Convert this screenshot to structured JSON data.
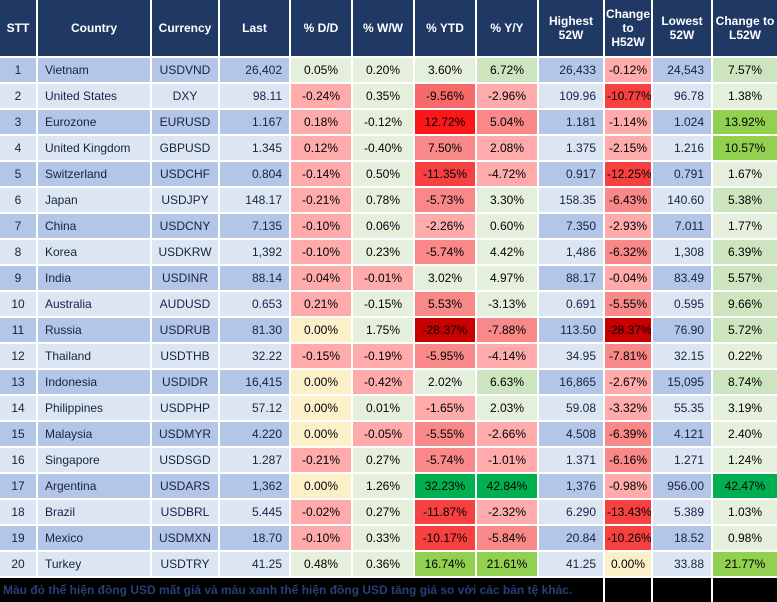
{
  "chart_data": {
    "type": "table",
    "columns": [
      "STT",
      "Country",
      "Currency",
      "Last",
      "% D/D",
      "% W/W",
      "% YTD",
      "% Y/Y",
      "Highest 52W",
      "Change to H52W",
      "Lowest 52W",
      "Change to L52W"
    ],
    "rows": [
      {
        "stt": "1",
        "country": "Vietnam",
        "currency": "USDVND",
        "last": "26,402",
        "dd": {
          "v": "0.05%",
          "c": "g1"
        },
        "ww": {
          "v": "0.20%",
          "c": "g1"
        },
        "ytd": {
          "v": "3.60%",
          "c": "g1"
        },
        "yy": {
          "v": "6.72%",
          "c": "g2"
        },
        "h52": "26,433",
        "chg_h": {
          "v": "-0.12%",
          "c": "r1"
        },
        "l52": "24,543",
        "chg_l": {
          "v": "7.57%",
          "c": "g2"
        }
      },
      {
        "stt": "2",
        "country": "United States",
        "currency": "DXY",
        "last": "98.11",
        "dd": {
          "v": "-0.24%",
          "c": "r1"
        },
        "ww": {
          "v": "0.35%",
          "c": "g1"
        },
        "ytd": {
          "v": "-9.56%",
          "c": "r3"
        },
        "yy": {
          "v": "-2.96%",
          "c": "r1"
        },
        "h52": "109.96",
        "chg_h": {
          "v": "-10.77%",
          "c": "r4"
        },
        "l52": "96.78",
        "chg_l": {
          "v": "1.38%",
          "c": "g1"
        }
      },
      {
        "stt": "3",
        "country": "Eurozone",
        "currency": "EURUSD",
        "last": "1.167",
        "dd": {
          "v": "0.18%",
          "c": "r1"
        },
        "ww": {
          "v": "-0.12%",
          "c": "g1"
        },
        "ytd": {
          "v": "12.72%",
          "c": "r5"
        },
        "yy": {
          "v": "5.04%",
          "c": "r2"
        },
        "h52": "1.181",
        "chg_h": {
          "v": "-1.14%",
          "c": "r1"
        },
        "l52": "1.024",
        "chg_l": {
          "v": "13.92%",
          "c": "g3"
        }
      },
      {
        "stt": "4",
        "country": "United Kingdom",
        "currency": "GBPUSD",
        "last": "1.345",
        "dd": {
          "v": "0.12%",
          "c": "r1"
        },
        "ww": {
          "v": "-0.40%",
          "c": "g1"
        },
        "ytd": {
          "v": "7.50%",
          "c": "r2"
        },
        "yy": {
          "v": "2.08%",
          "c": "r1"
        },
        "h52": "1.375",
        "chg_h": {
          "v": "-2.15%",
          "c": "r1"
        },
        "l52": "1.216",
        "chg_l": {
          "v": "10.57%",
          "c": "g3"
        }
      },
      {
        "stt": "5",
        "country": "Switzerland",
        "currency": "USDCHF",
        "last": "0.804",
        "dd": {
          "v": "-0.14%",
          "c": "r1"
        },
        "ww": {
          "v": "0.50%",
          "c": "g1"
        },
        "ytd": {
          "v": "-11.35%",
          "c": "r4"
        },
        "yy": {
          "v": "-4.72%",
          "c": "r1"
        },
        "h52": "0.917",
        "chg_h": {
          "v": "-12.25%",
          "c": "r4"
        },
        "l52": "0.791",
        "chg_l": {
          "v": "1.67%",
          "c": "g1"
        }
      },
      {
        "stt": "6",
        "country": "Japan",
        "currency": "USDJPY",
        "last": "148.17",
        "dd": {
          "v": "-0.21%",
          "c": "r1"
        },
        "ww": {
          "v": "0.78%",
          "c": "g1"
        },
        "ytd": {
          "v": "-5.73%",
          "c": "r2"
        },
        "yy": {
          "v": "3.30%",
          "c": "g1"
        },
        "h52": "158.35",
        "chg_h": {
          "v": "-6.43%",
          "c": "r2"
        },
        "l52": "140.60",
        "chg_l": {
          "v": "5.38%",
          "c": "g2"
        }
      },
      {
        "stt": "7",
        "country": "China",
        "currency": "USDCNY",
        "last": "7.135",
        "dd": {
          "v": "-0.10%",
          "c": "r1"
        },
        "ww": {
          "v": "0.06%",
          "c": "g1"
        },
        "ytd": {
          "v": "-2.26%",
          "c": "r1"
        },
        "yy": {
          "v": "0.60%",
          "c": "g1"
        },
        "h52": "7.350",
        "chg_h": {
          "v": "-2.93%",
          "c": "r1"
        },
        "l52": "7.011",
        "chg_l": {
          "v": "1.77%",
          "c": "g1"
        }
      },
      {
        "stt": "8",
        "country": "Korea",
        "currency": "USDKRW",
        "last": "1,392",
        "dd": {
          "v": "-0.10%",
          "c": "r1"
        },
        "ww": {
          "v": "0.23%",
          "c": "g1"
        },
        "ytd": {
          "v": "-5.74%",
          "c": "r2"
        },
        "yy": {
          "v": "4.42%",
          "c": "g1"
        },
        "h52": "1,486",
        "chg_h": {
          "v": "-6.32%",
          "c": "r2"
        },
        "l52": "1,308",
        "chg_l": {
          "v": "6.39%",
          "c": "g2"
        }
      },
      {
        "stt": "9",
        "country": "India",
        "currency": "USDINR",
        "last": "88.14",
        "dd": {
          "v": "-0.04%",
          "c": "r1"
        },
        "ww": {
          "v": "-0.01%",
          "c": "r1"
        },
        "ytd": {
          "v": "3.02%",
          "c": "g1"
        },
        "yy": {
          "v": "4.97%",
          "c": "g1"
        },
        "h52": "88.17",
        "chg_h": {
          "v": "-0.04%",
          "c": "r1"
        },
        "l52": "83.49",
        "chg_l": {
          "v": "5.57%",
          "c": "g2"
        }
      },
      {
        "stt": "10",
        "country": "Australia",
        "currency": "AUDUSD",
        "last": "0.653",
        "dd": {
          "v": "0.21%",
          "c": "r1"
        },
        "ww": {
          "v": "-0.15%",
          "c": "g1"
        },
        "ytd": {
          "v": "5.53%",
          "c": "r2"
        },
        "yy": {
          "v": "-3.13%",
          "c": "g1"
        },
        "h52": "0.691",
        "chg_h": {
          "v": "-5.55%",
          "c": "r2"
        },
        "l52": "0.595",
        "chg_l": {
          "v": "9.66%",
          "c": "g2"
        }
      },
      {
        "stt": "11",
        "country": "Russia",
        "currency": "USDRUB",
        "last": "81.30",
        "dd": {
          "v": "0.00%",
          "c": "y"
        },
        "ww": {
          "v": "1.75%",
          "c": "g1"
        },
        "ytd": {
          "v": "-28.37%",
          "c": "r6"
        },
        "yy": {
          "v": "-7.88%",
          "c": "r2"
        },
        "h52": "113.50",
        "chg_h": {
          "v": "-28.37%",
          "c": "r6"
        },
        "l52": "76.90",
        "chg_l": {
          "v": "5.72%",
          "c": "g2"
        }
      },
      {
        "stt": "12",
        "country": "Thailand",
        "currency": "USDTHB",
        "last": "32.22",
        "dd": {
          "v": "-0.15%",
          "c": "r1"
        },
        "ww": {
          "v": "-0.19%",
          "c": "r1"
        },
        "ytd": {
          "v": "-5.95%",
          "c": "r2"
        },
        "yy": {
          "v": "-4.14%",
          "c": "r1"
        },
        "h52": "34.95",
        "chg_h": {
          "v": "-7.81%",
          "c": "r2"
        },
        "l52": "32.15",
        "chg_l": {
          "v": "0.22%",
          "c": "g1"
        }
      },
      {
        "stt": "13",
        "country": "Indonesia",
        "currency": "USDIDR",
        "last": "16,415",
        "dd": {
          "v": "0.00%",
          "c": "y"
        },
        "ww": {
          "v": "-0.42%",
          "c": "r1"
        },
        "ytd": {
          "v": "2.02%",
          "c": "g1"
        },
        "yy": {
          "v": "6.63%",
          "c": "g2"
        },
        "h52": "16,865",
        "chg_h": {
          "v": "-2.67%",
          "c": "r1"
        },
        "l52": "15,095",
        "chg_l": {
          "v": "8.74%",
          "c": "g2"
        }
      },
      {
        "stt": "14",
        "country": "Philippines",
        "currency": "USDPHP",
        "last": "57.12",
        "dd": {
          "v": "0.00%",
          "c": "y"
        },
        "ww": {
          "v": "0.01%",
          "c": "g1"
        },
        "ytd": {
          "v": "-1.65%",
          "c": "r1"
        },
        "yy": {
          "v": "2.03%",
          "c": "g1"
        },
        "h52": "59.08",
        "chg_h": {
          "v": "-3.32%",
          "c": "r1"
        },
        "l52": "55.35",
        "chg_l": {
          "v": "3.19%",
          "c": "g1"
        }
      },
      {
        "stt": "15",
        "country": "Malaysia",
        "currency": "USDMYR",
        "last": "4.220",
        "dd": {
          "v": "0.00%",
          "c": "y"
        },
        "ww": {
          "v": "-0.05%",
          "c": "r1"
        },
        "ytd": {
          "v": "-5.55%",
          "c": "r2"
        },
        "yy": {
          "v": "-2.66%",
          "c": "r1"
        },
        "h52": "4.508",
        "chg_h": {
          "v": "-6.39%",
          "c": "r2"
        },
        "l52": "4.121",
        "chg_l": {
          "v": "2.40%",
          "c": "g1"
        }
      },
      {
        "stt": "16",
        "country": "Singapore",
        "currency": "USDSGD",
        "last": "1.287",
        "dd": {
          "v": "-0.21%",
          "c": "r1"
        },
        "ww": {
          "v": "0.27%",
          "c": "g1"
        },
        "ytd": {
          "v": "-5.74%",
          "c": "r2"
        },
        "yy": {
          "v": "-1.01%",
          "c": "r1"
        },
        "h52": "1.371",
        "chg_h": {
          "v": "-6.16%",
          "c": "r2"
        },
        "l52": "1.271",
        "chg_l": {
          "v": "1.24%",
          "c": "g1"
        }
      },
      {
        "stt": "17",
        "country": "Argentina",
        "currency": "USDARS",
        "last": "1,362",
        "dd": {
          "v": "0.00%",
          "c": "y"
        },
        "ww": {
          "v": "1.26%",
          "c": "g1"
        },
        "ytd": {
          "v": "32.23%",
          "c": "g4"
        },
        "yy": {
          "v": "42.84%",
          "c": "g4"
        },
        "h52": "1,376",
        "chg_h": {
          "v": "-0.98%",
          "c": "r1"
        },
        "l52": "956.00",
        "chg_l": {
          "v": "42.47%",
          "c": "g4"
        }
      },
      {
        "stt": "18",
        "country": "Brazil",
        "currency": "USDBRL",
        "last": "5.445",
        "dd": {
          "v": "-0.02%",
          "c": "r1"
        },
        "ww": {
          "v": "0.27%",
          "c": "g1"
        },
        "ytd": {
          "v": "-11.87%",
          "c": "r4"
        },
        "yy": {
          "v": "-2.32%",
          "c": "r1"
        },
        "h52": "6.290",
        "chg_h": {
          "v": "-13.43%",
          "c": "r4"
        },
        "l52": "5.389",
        "chg_l": {
          "v": "1.03%",
          "c": "g1"
        }
      },
      {
        "stt": "19",
        "country": "Mexico",
        "currency": "USDMXN",
        "last": "18.70",
        "dd": {
          "v": "-0.10%",
          "c": "r1"
        },
        "ww": {
          "v": "0.33%",
          "c": "g1"
        },
        "ytd": {
          "v": "-10.17%",
          "c": "r4"
        },
        "yy": {
          "v": "-5.84%",
          "c": "r2"
        },
        "h52": "20.84",
        "chg_h": {
          "v": "-10.26%",
          "c": "r4"
        },
        "l52": "18.52",
        "chg_l": {
          "v": "0.98%",
          "c": "g1"
        }
      },
      {
        "stt": "20",
        "country": "Turkey",
        "currency": "USDTRY",
        "last": "41.25",
        "dd": {
          "v": "0.48%",
          "c": "g1"
        },
        "ww": {
          "v": "0.36%",
          "c": "g1"
        },
        "ytd": {
          "v": "16.74%",
          "c": "g3"
        },
        "yy": {
          "v": "21.61%",
          "c": "g3"
        },
        "h52": "41.25",
        "chg_h": {
          "v": "0.00%",
          "c": "y"
        },
        "l52": "33.88",
        "chg_l": {
          "v": "21.77%",
          "c": "g3"
        }
      }
    ],
    "note": "Màu đỏ thể hiện đồng USD mất giá và màu xanh thể hiện đồng USD tăng giá so với các bản tệ khác.",
    "colors": {
      "header_bg": "#1F3864",
      "header_text": "#FFFFFF",
      "row_odd": "#B4C6E7",
      "row_even": "#DCE6F2",
      "grid": "#FFFFFF",
      "note_bg": "#000000",
      "note_text": "#25407A",
      "heat": {
        "g1": "#E4F0DC",
        "g2": "#CDE5BF",
        "g3": "#92D050",
        "g4": "#00B050",
        "y": "#FCF0C8",
        "r1": "#FFABAB",
        "r2": "#F98888",
        "r3": "#F76A6A",
        "r4": "#F74141",
        "r5": "#FA1717",
        "r6": "#C80000"
      }
    }
  }
}
